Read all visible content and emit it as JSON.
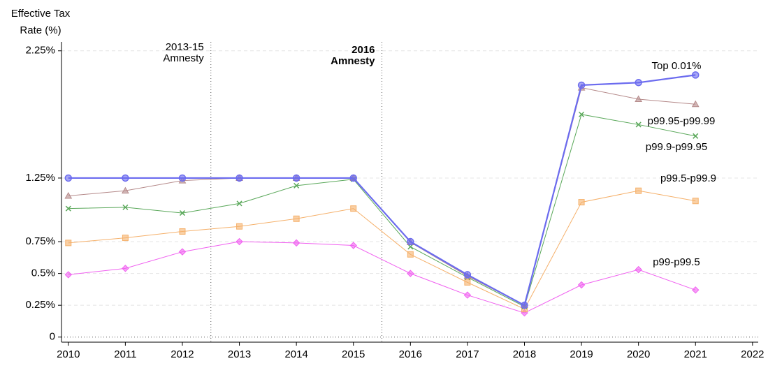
{
  "chart_data": {
    "type": "line",
    "y_label": [
      "Effective Tax",
      "Rate (%)"
    ],
    "x": [
      2010,
      2011,
      2012,
      2013,
      2014,
      2015,
      2016,
      2017,
      2018,
      2019,
      2020,
      2021
    ],
    "xlim": [
      2009.88,
      2022.1
    ],
    "xticks": [
      2010,
      2011,
      2012,
      2013,
      2014,
      2015,
      2016,
      2017,
      2018,
      2019,
      2020,
      2021,
      2022
    ],
    "ylim": [
      -0.04,
      2.32
    ],
    "yticks": [
      0,
      {
        "value": 0.25,
        "label": "0.25%"
      },
      {
        "value": 0.5,
        "label": "0.5%"
      },
      {
        "value": 0.75,
        "label": "0.75%"
      },
      {
        "value": 1.25,
        "label": "1.25%"
      },
      {
        "value": 2.25,
        "label": "2.25%"
      }
    ],
    "grid": true,
    "annotations": [
      {
        "x": 2012.5,
        "lines": [
          "2013-15",
          "Amnesty"
        ],
        "color": "#888888",
        "bold": false
      },
      {
        "x": 2015.5,
        "lines": [
          "2016",
          "Amnesty"
        ],
        "color": "#ee0000",
        "bold": true
      }
    ],
    "series": [
      {
        "name": "p99-p99.5",
        "color": "#f060f0",
        "marker": "diamond",
        "values": [
          0.49,
          0.54,
          0.67,
          0.75,
          0.74,
          0.72,
          0.5,
          0.33,
          0.19,
          0.41,
          0.53,
          0.37
        ]
      },
      {
        "name": "p99.5-p99.9",
        "color": "#f5b06a",
        "marker": "square",
        "values": [
          0.74,
          0.78,
          0.83,
          0.87,
          0.93,
          1.01,
          0.65,
          0.43,
          0.22,
          1.06,
          1.15,
          1.07
        ]
      },
      {
        "name": "p99.9-p99.95",
        "color": "#5aa85a",
        "marker": "x",
        "values": [
          1.01,
          1.02,
          0.975,
          1.05,
          1.19,
          1.24,
          0.71,
          0.47,
          0.24,
          1.75,
          1.67,
          1.58
        ]
      },
      {
        "name": "p99.95-p99.99",
        "color": "#b58a8a",
        "marker": "triangle",
        "values": [
          1.11,
          1.15,
          1.23,
          1.25,
          1.25,
          1.25,
          0.745,
          0.48,
          0.25,
          1.96,
          1.87,
          1.83
        ]
      },
      {
        "name": "Top 0.01%",
        "color": "#6b6bef",
        "marker": "circle",
        "values": [
          1.25,
          1.25,
          1.25,
          1.25,
          1.25,
          1.25,
          0.75,
          0.49,
          0.25,
          1.98,
          2.0,
          2.06
        ]
      }
    ]
  }
}
